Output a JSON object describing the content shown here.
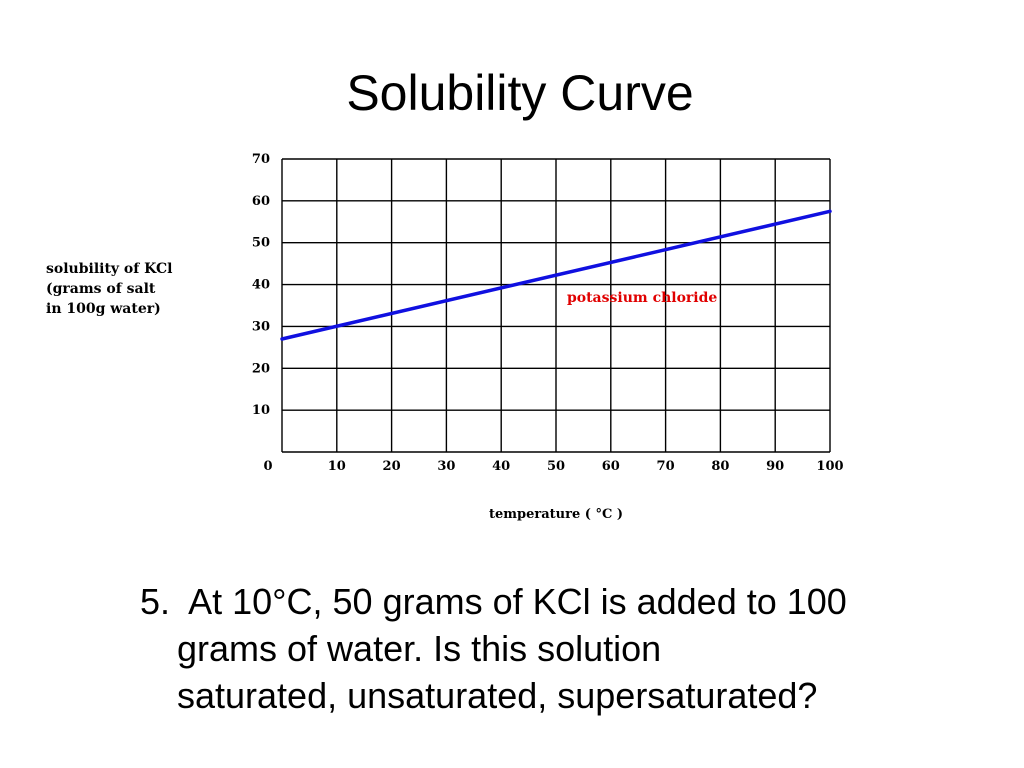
{
  "slide": {
    "title": "Solubility Curve"
  },
  "chart_data": {
    "type": "line",
    "title": "",
    "xlabel": "temperature ( °C )",
    "ylabel_lines": [
      "solubility of KCl",
      "(grams of salt",
      "in 100g water)"
    ],
    "xlim": [
      0,
      100
    ],
    "ylim": [
      0,
      70
    ],
    "x_ticks": [
      "0",
      "10",
      "20",
      "30",
      "40",
      "50",
      "60",
      "70",
      "80",
      "90",
      "100"
    ],
    "y_ticks": [
      "10",
      "20",
      "30",
      "40",
      "50",
      "60",
      "70"
    ],
    "grid": true,
    "series": [
      {
        "name": "potassium chloride",
        "color": "#1010e0",
        "x": [
          0,
          100
        ],
        "y": [
          27,
          57.5
        ]
      }
    ],
    "series_label_color": "#e00000",
    "series_label_at": [
      52,
      37
    ]
  },
  "question": {
    "number": "5.",
    "lines": [
      "At 10°C, 50 grams of KCl is added to 100",
      "grams of water.  Is this solution",
      "saturated, unsaturated, supersaturated?"
    ]
  }
}
